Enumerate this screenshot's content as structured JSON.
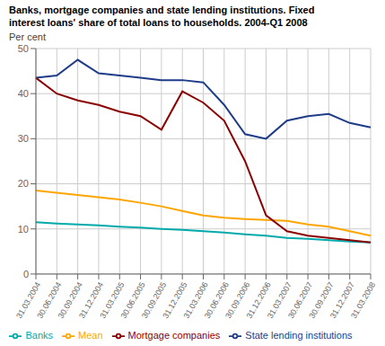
{
  "chart_data": {
    "type": "line",
    "title": "Banks, mortgage companies and state lending institutions. Fixed\ninterest loans' share of total loans to households. 2004-Q1 2008",
    "ylabel": "Per cent",
    "categories": [
      "31.03.2004",
      "30.06.2004",
      "30.09.2004",
      "31.12.2004",
      "31.03.2005",
      "30.06.2005",
      "30.09.2005",
      "31.12.2005",
      "31.03.2006",
      "30.06.2006",
      "30.09.2006",
      "31.12.2006",
      "31.03.2007",
      "30.06.2007",
      "30.09.2007",
      "31.12.2007",
      "31.03.2008"
    ],
    "series": [
      {
        "name": "Banks",
        "color": "#00AAAA",
        "values": [
          11.5,
          11.2,
          11.0,
          10.8,
          10.5,
          10.3,
          10.0,
          9.8,
          9.5,
          9.2,
          8.8,
          8.5,
          8.0,
          7.8,
          7.5,
          7.2,
          7.0
        ]
      },
      {
        "name": "Mean",
        "color": "#FFA500",
        "values": [
          18.5,
          18.0,
          17.5,
          17.0,
          16.5,
          15.8,
          15.0,
          14.0,
          13.0,
          12.5,
          12.2,
          12.0,
          11.8,
          11.0,
          10.5,
          9.5,
          8.5
        ]
      },
      {
        "name": "State lending institutions",
        "color": "#1F3C88",
        "values": [
          43.5,
          44.0,
          47.5,
          44.5,
          44.0,
          43.5,
          43.0,
          43.0,
          42.5,
          37.5,
          31.0,
          30.0,
          34.0,
          35.0,
          35.5,
          33.5,
          32.5
        ]
      },
      {
        "name": "Mortgage companies",
        "color": "#8B0000",
        "values": [
          43.5,
          40.0,
          38.5,
          37.5,
          36.0,
          35.0,
          32.0,
          40.5,
          38.0,
          34.0,
          25.0,
          13.0,
          9.5,
          8.5,
          8.0,
          7.5,
          7.0
        ]
      }
    ],
    "ylim": [
      0,
      50
    ],
    "yticks": [
      0,
      10,
      20,
      30,
      40,
      50
    ],
    "grid": true,
    "legend": "bottom"
  }
}
